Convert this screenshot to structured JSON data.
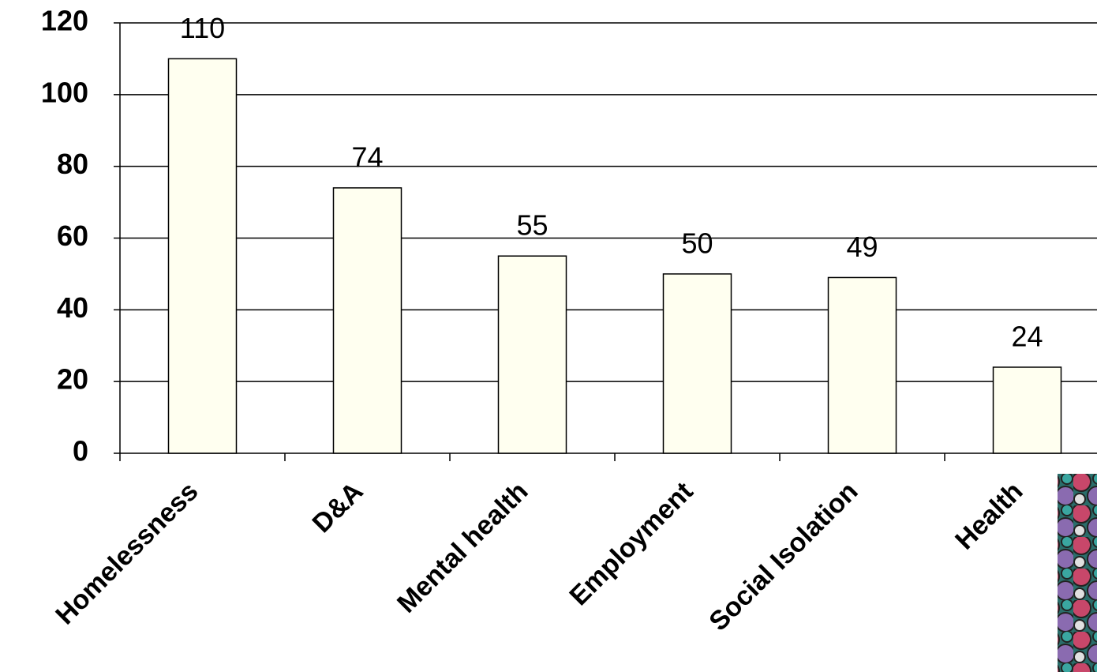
{
  "chart_data": {
    "type": "bar",
    "categories": [
      "Homelessness",
      "D&A",
      "Mental health",
      "Employment",
      "Social Isolation",
      "Health"
    ],
    "values": [
      110,
      74,
      55,
      50,
      49,
      24
    ],
    "color": "#fffff0",
    "ylim": [
      0,
      120
    ],
    "yticks": [
      0,
      20,
      40,
      60,
      80,
      100,
      120
    ],
    "grid": true
  }
}
